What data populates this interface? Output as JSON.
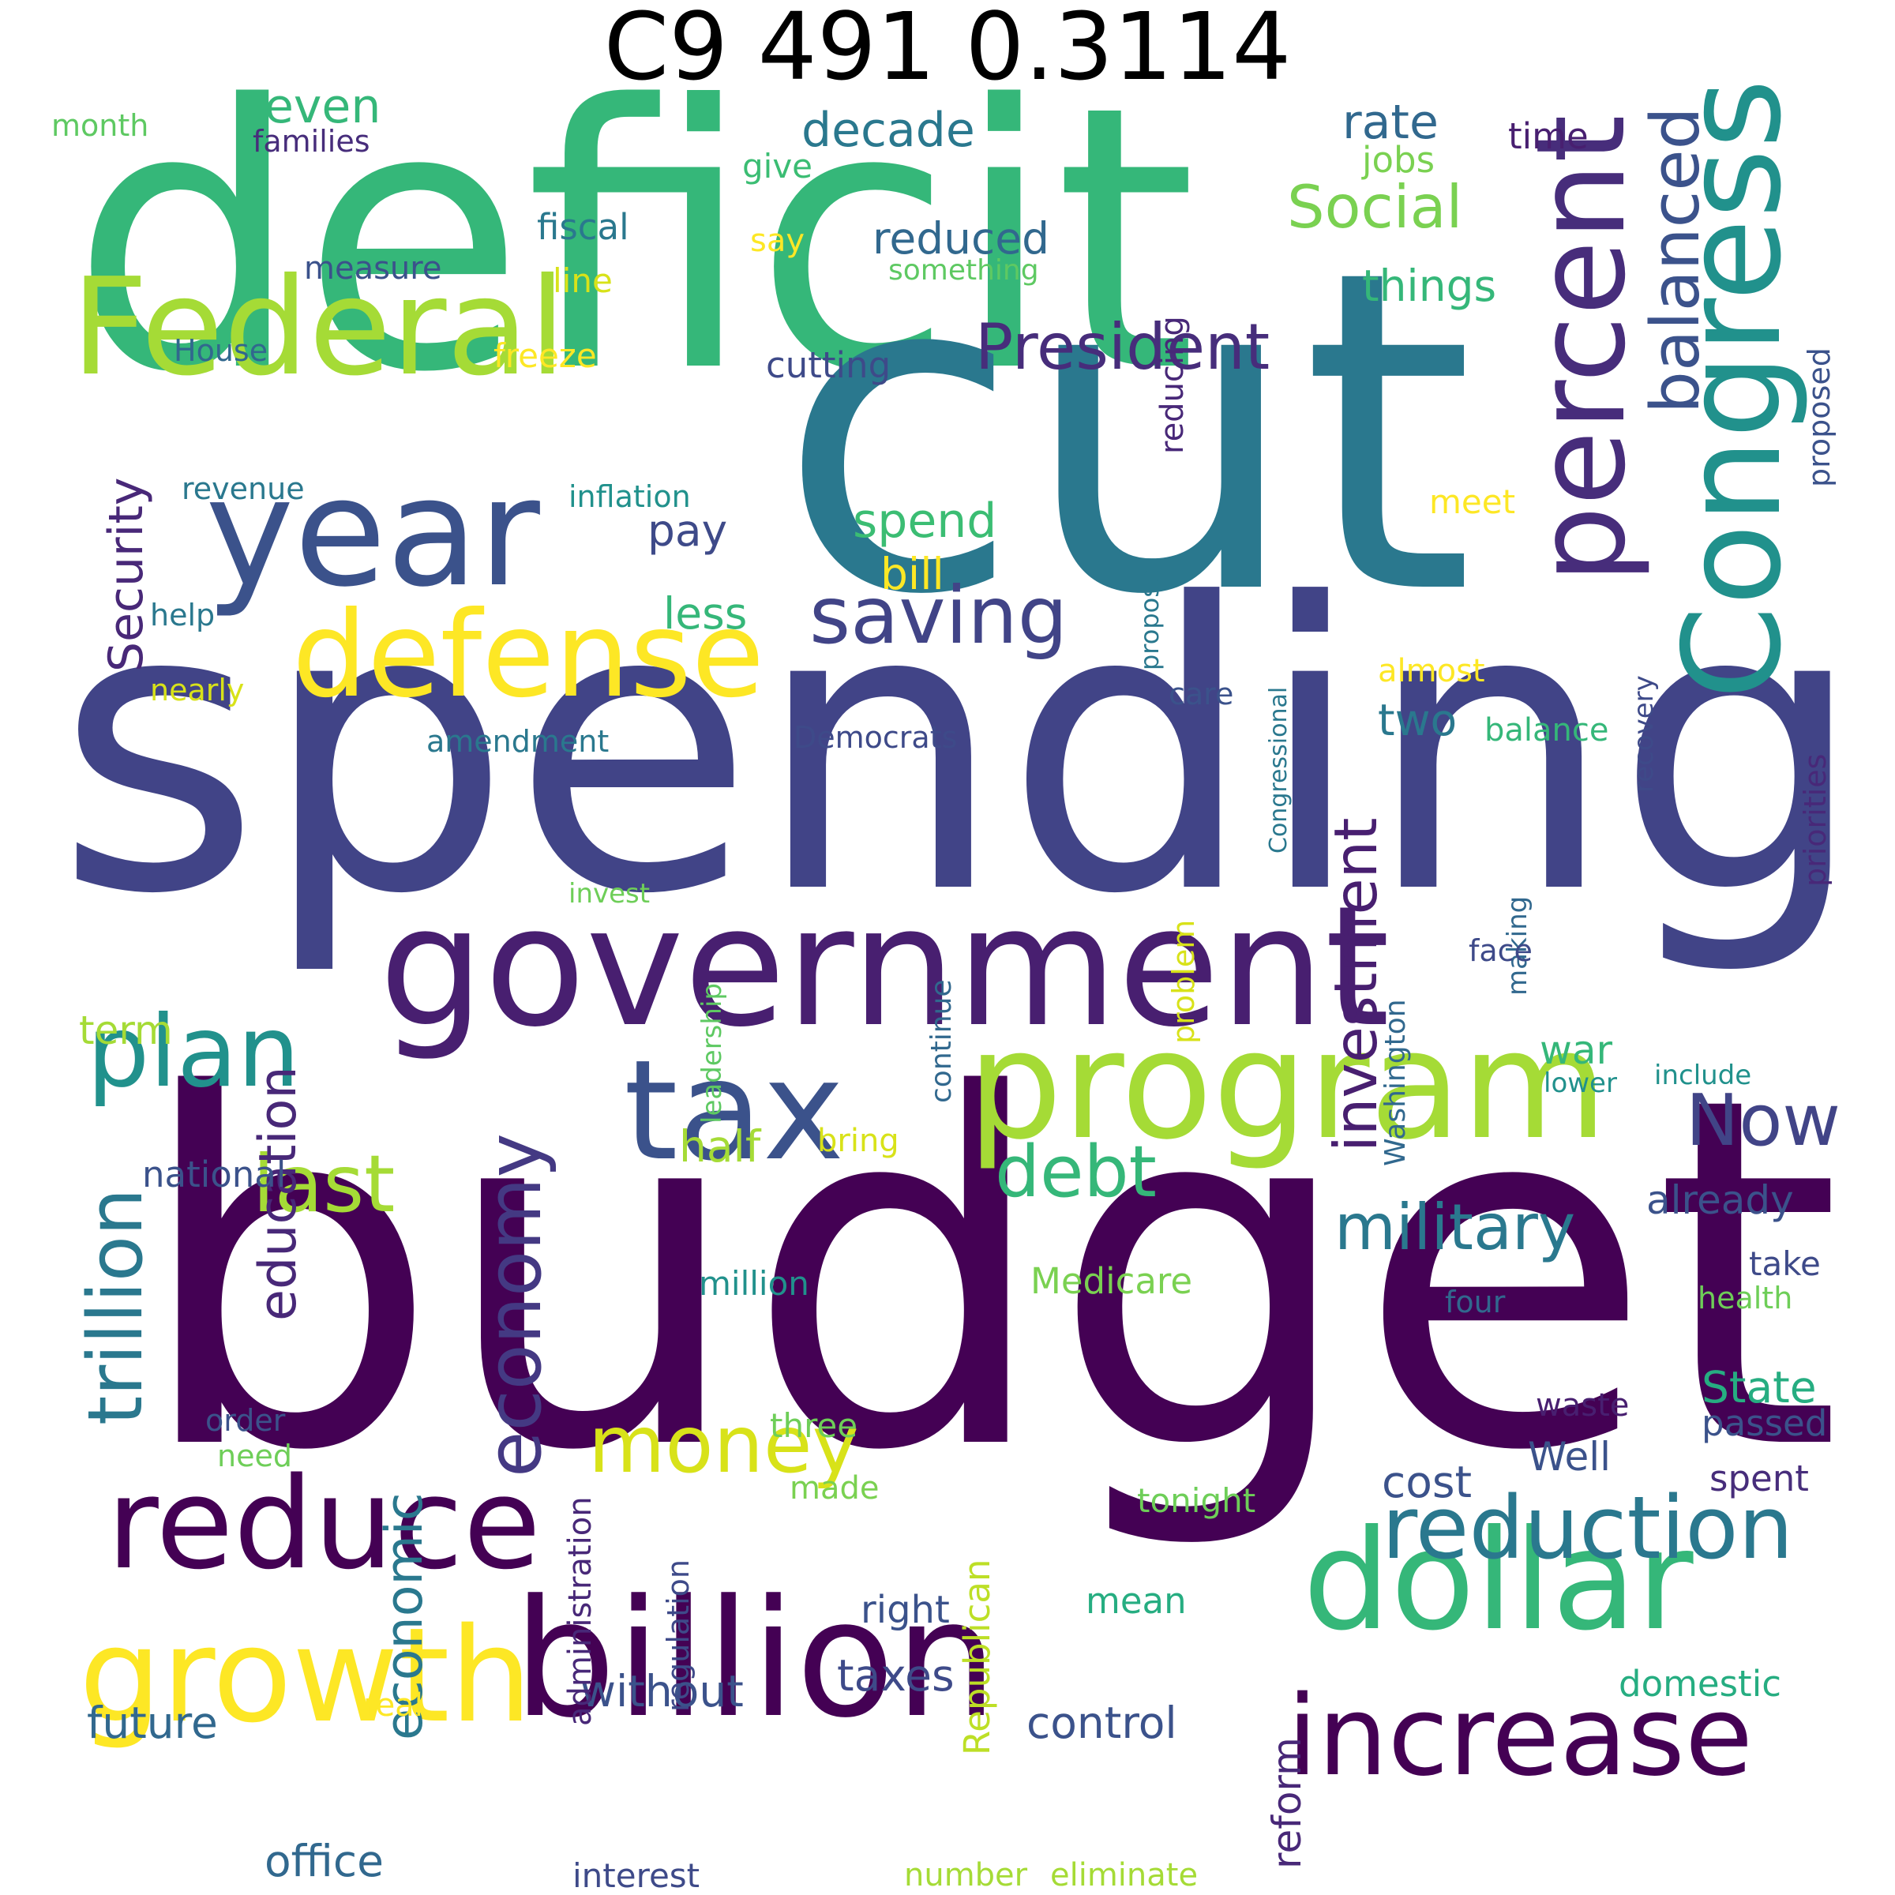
{
  "title": "C9 491 0.3114",
  "words": [
    {
      "text": "deficit",
      "color": "#35b779"
    },
    {
      "text": "cut",
      "color": "#2a788e"
    },
    {
      "text": "spending",
      "color": "#414487"
    },
    {
      "text": "budget",
      "color": "#440154"
    },
    {
      "text": "Federal",
      "color": "#a5db36"
    },
    {
      "text": "year",
      "color": "#3b528b"
    },
    {
      "text": "Congress",
      "color": "#21918c"
    },
    {
      "text": "percent",
      "color": "#472d7b"
    },
    {
      "text": "balanced",
      "color": "#3b528b"
    },
    {
      "text": "government",
      "color": "#481f70"
    },
    {
      "text": "program",
      "color": "#a5db36"
    },
    {
      "text": "billion",
      "color": "#440154"
    },
    {
      "text": "tax",
      "color": "#3b528b"
    },
    {
      "text": "defense",
      "color": "#fde725"
    },
    {
      "text": "reduce",
      "color": "#440154"
    },
    {
      "text": "growth",
      "color": "#fde725"
    },
    {
      "text": "dollar",
      "color": "#35b779"
    },
    {
      "text": "increase",
      "color": "#440154"
    },
    {
      "text": "reduction",
      "color": "#2a788e"
    },
    {
      "text": "plan",
      "color": "#21918c"
    },
    {
      "text": "saving",
      "color": "#414487"
    },
    {
      "text": "President",
      "color": "#472d7b"
    },
    {
      "text": "money",
      "color": "#d8e219"
    },
    {
      "text": "last",
      "color": "#a5db36"
    },
    {
      "text": "trillion",
      "color": "#2a788e"
    },
    {
      "text": "economy",
      "color": "#443983"
    },
    {
      "text": "military",
      "color": "#2a788e"
    },
    {
      "text": "debt",
      "color": "#35b779"
    },
    {
      "text": "Now",
      "color": "#414487"
    },
    {
      "text": "investment",
      "color": "#481f70"
    },
    {
      "text": "Social",
      "color": "#7ad151"
    },
    {
      "text": "Security",
      "color": "#482878"
    },
    {
      "text": "education",
      "color": "#482878"
    },
    {
      "text": "economic",
      "color": "#2a788e"
    },
    {
      "text": "decade",
      "color": "#2a788e"
    },
    {
      "text": "reduced",
      "color": "#31688e"
    },
    {
      "text": "rate",
      "color": "#31688e"
    },
    {
      "text": "things",
      "color": "#35b779"
    },
    {
      "text": "even",
      "color": "#35b779"
    },
    {
      "text": "spend",
      "color": "#3bbd73"
    },
    {
      "text": "pay",
      "color": "#3e4a89"
    },
    {
      "text": "less",
      "color": "#35b779"
    },
    {
      "text": "two",
      "color": "#2a788e"
    },
    {
      "text": "cost",
      "color": "#3b528b"
    },
    {
      "text": "future",
      "color": "#31688e"
    },
    {
      "text": "without",
      "color": "#3b528b"
    },
    {
      "text": "taxes",
      "color": "#3e4a89"
    },
    {
      "text": "control",
      "color": "#3b528b"
    },
    {
      "text": "office",
      "color": "#31688e"
    },
    {
      "text": "half",
      "color": "#a5db36"
    },
    {
      "text": "bill",
      "color": "#fde725"
    },
    {
      "text": "State",
      "color": "#26ad81"
    },
    {
      "text": "reform",
      "color": "#482878"
    },
    {
      "text": "Republican",
      "color": "#bddf26"
    },
    {
      "text": "administration",
      "color": "#482878"
    },
    {
      "text": "regulation",
      "color": "#3e4a89"
    },
    {
      "text": "national",
      "color": "#3b528b"
    },
    {
      "text": "term",
      "color": "#a5db36"
    },
    {
      "text": "war",
      "color": "#35b779"
    },
    {
      "text": "already",
      "color": "#3b528b"
    },
    {
      "text": "Medicare",
      "color": "#7ad151"
    },
    {
      "text": "domestic",
      "color": "#26ad81"
    },
    {
      "text": "fiscal",
      "color": "#2a788e"
    },
    {
      "text": "cutting",
      "color": "#3e4a89"
    },
    {
      "text": "reducing",
      "color": "#482878"
    },
    {
      "text": "proposed",
      "color": "#3b528b"
    },
    {
      "text": "priorities",
      "color": "#482878"
    },
    {
      "text": "jobs",
      "color": "#7ad151"
    },
    {
      "text": "time",
      "color": "#481f70"
    },
    {
      "text": "give",
      "color": "#3bbd73"
    },
    {
      "text": "say",
      "color": "#fde725"
    },
    {
      "text": "line",
      "color": "#d8e219"
    },
    {
      "text": "something",
      "color": "#5ec962"
    },
    {
      "text": "measure",
      "color": "#3b528b"
    },
    {
      "text": "House",
      "color": "#31688e"
    },
    {
      "text": "freeze",
      "color": "#fde725"
    },
    {
      "text": "month",
      "color": "#5ec962"
    },
    {
      "text": "families",
      "color": "#472d7b"
    },
    {
      "text": "revenue",
      "color": "#2a788e"
    },
    {
      "text": "inflation",
      "color": "#21918c"
    },
    {
      "text": "help",
      "color": "#2a788e"
    },
    {
      "text": "nearly",
      "color": "#d8e219"
    },
    {
      "text": "amendment",
      "color": "#2a788e"
    },
    {
      "text": "Democrats",
      "color": "#3e4a89"
    },
    {
      "text": "care",
      "color": "#3b528b"
    },
    {
      "text": "propose",
      "color": "#2a788e"
    },
    {
      "text": "Congressional",
      "color": "#2a788e"
    },
    {
      "text": "meet",
      "color": "#fde725"
    },
    {
      "text": "almost",
      "color": "#fde725"
    },
    {
      "text": "recovery",
      "color": "#3e4a89"
    },
    {
      "text": "balance",
      "color": "#35b779"
    },
    {
      "text": "problem",
      "color": "#d8e219"
    },
    {
      "text": "continue",
      "color": "#31688e"
    },
    {
      "text": "leadership",
      "color": "#5ec962"
    },
    {
      "text": "invest",
      "color": "#6ece58"
    },
    {
      "text": "Washington",
      "color": "#31688e"
    },
    {
      "text": "making",
      "color": "#31688e"
    },
    {
      "text": "face",
      "color": "#3e4a89"
    },
    {
      "text": "include",
      "color": "#21918c"
    },
    {
      "text": "lower",
      "color": "#21918c"
    },
    {
      "text": "bring",
      "color": "#d8e219"
    },
    {
      "text": "take",
      "color": "#3e4a89"
    },
    {
      "text": "million",
      "color": "#21918c"
    },
    {
      "text": "four",
      "color": "#31688e"
    },
    {
      "text": "health",
      "color": "#6ece58"
    },
    {
      "text": "passed",
      "color": "#3b528b"
    },
    {
      "text": "waste",
      "color": "#481f70"
    },
    {
      "text": "Well",
      "color": "#3b528b"
    },
    {
      "text": "spent",
      "color": "#472d7b"
    },
    {
      "text": "order",
      "color": "#3b528b"
    },
    {
      "text": "need",
      "color": "#6ece58"
    },
    {
      "text": "three",
      "color": "#6ece58"
    },
    {
      "text": "made",
      "color": "#7ad151"
    },
    {
      "text": "tonight",
      "color": "#6ece58"
    },
    {
      "text": "right",
      "color": "#3b528b"
    },
    {
      "text": "mean",
      "color": "#26ad81"
    },
    {
      "text": "real",
      "color": "#fde725"
    },
    {
      "text": "interest",
      "color": "#3e4a89"
    },
    {
      "text": "number",
      "color": "#a5db36"
    },
    {
      "text": "eliminate",
      "color": "#a5db36"
    }
  ]
}
